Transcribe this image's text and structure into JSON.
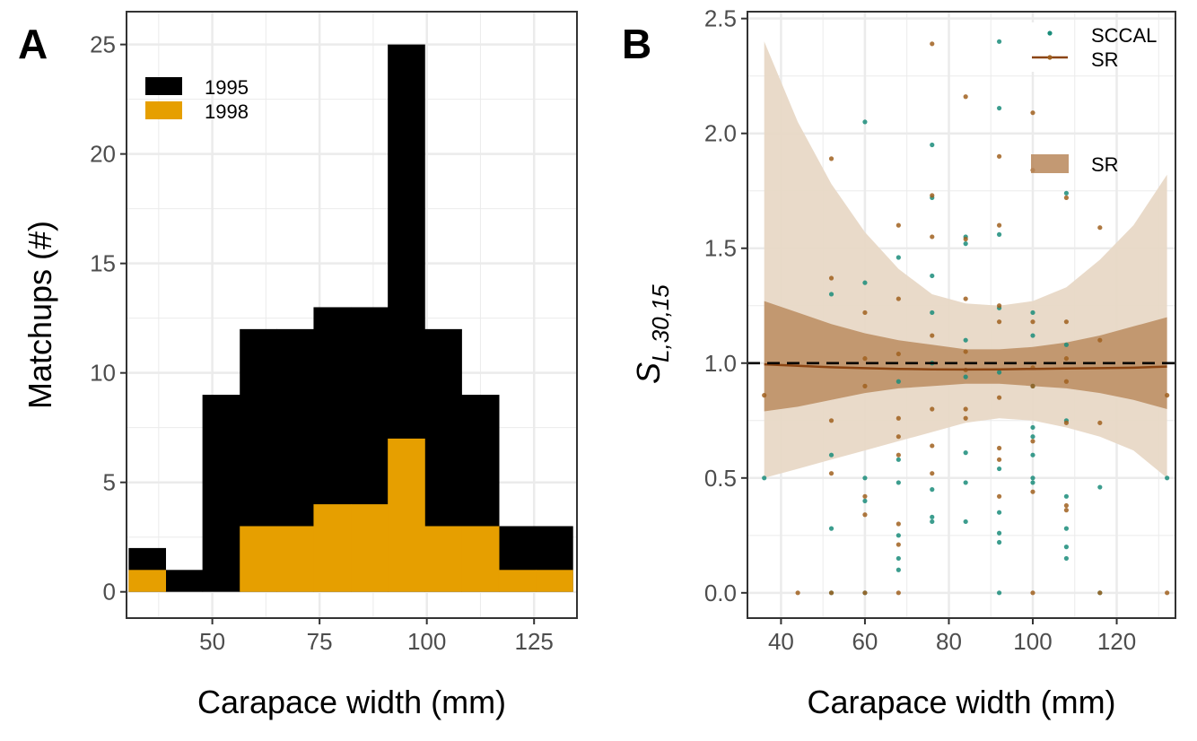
{
  "colors": {
    "bar_1995": "#000000",
    "bar_1998": "#E69F00",
    "sccal": "#1A8C7A",
    "sr_line": "#8B4513",
    "sr_points": "#A0601E",
    "sr_ribbon_inner": "#B8875A",
    "sr_ribbon_outer": "#E8D8C6",
    "grid": "#EBEBEB",
    "axis": "#333333"
  },
  "chart_data": [
    {
      "type": "bar",
      "panel_label": "A",
      "xlabel": "Carapace width (mm)",
      "ylabel": "Matchups (#)",
      "xlim": [
        30,
        135
      ],
      "ylim": [
        -1.2,
        26.5
      ],
      "x_ticks": [
        50,
        75,
        100,
        125
      ],
      "y_ticks": [
        0,
        5,
        10,
        15,
        20,
        25
      ],
      "bin_edges": [
        30.5,
        39.1,
        47.7,
        56.4,
        65.0,
        73.6,
        82.3,
        90.9,
        99.5,
        108.1,
        116.8,
        125.4,
        134.0
      ],
      "legend": {
        "position": "top-left",
        "entries": [
          "1995",
          "1998"
        ]
      },
      "series": [
        {
          "name": "1995",
          "values": [
            2,
            1,
            9,
            12,
            12,
            13,
            13,
            25,
            12,
            9,
            3,
            3
          ]
        },
        {
          "name": "1998",
          "values": [
            1,
            0,
            0,
            3,
            3,
            4,
            4,
            7,
            3,
            3,
            1,
            1
          ]
        }
      ]
    },
    {
      "type": "scatter",
      "panel_label": "B",
      "xlabel": "Carapace width (mm)",
      "ylabel_main": "S",
      "ylabel_sub": "L,30,15",
      "xlim": [
        32,
        134
      ],
      "ylim": [
        -0.11,
        2.53
      ],
      "x_ticks": [
        40,
        60,
        80,
        100,
        120
      ],
      "y_ticks": [
        "0.0",
        "0.5",
        "1.0",
        "1.5",
        "2.0",
        "2.5"
      ],
      "reference_line": 1.0,
      "legend": {
        "position": "top-right",
        "entries": [
          {
            "label": "SCCAL",
            "kind": "point"
          },
          {
            "label": "SR",
            "kind": "line"
          },
          {
            "label": "SR",
            "kind": "ribbon"
          }
        ]
      },
      "series": [
        {
          "name": "SCCAL",
          "points": [
            [
              36,
              0.5
            ],
            [
              52,
              0.28
            ],
            [
              52,
              0.6
            ],
            [
              52,
              1.3
            ],
            [
              52,
              0
            ],
            [
              60,
              0.5
            ],
            [
              60,
              1.35
            ],
            [
              60,
              2.05
            ],
            [
              60,
              0.4
            ],
            [
              60,
              0
            ],
            [
              68,
              0.1
            ],
            [
              68,
              0.15
            ],
            [
              68,
              0.25
            ],
            [
              68,
              0.48
            ],
            [
              68,
              1.46
            ],
            [
              68,
              0.92
            ],
            [
              68,
              0.58
            ],
            [
              76,
              0.31
            ],
            [
              76,
              0.33
            ],
            [
              76,
              0.45
            ],
            [
              76,
              1.38
            ],
            [
              76,
              1.95
            ],
            [
              76,
              1.72
            ],
            [
              76,
              1.22
            ],
            [
              76,
              1.0
            ],
            [
              84,
              0.31
            ],
            [
              84,
              0.48
            ],
            [
              84,
              0.61
            ],
            [
              84,
              0.94
            ],
            [
              84,
              1.1
            ],
            [
              84,
              1.55
            ],
            [
              84,
              1.52
            ],
            [
              92,
              0.22
            ],
            [
              92,
              0.26
            ],
            [
              92,
              0.35
            ],
            [
              92,
              0.54
            ],
            [
              92,
              1.24
            ],
            [
              92,
              1.56
            ],
            [
              92,
              2.11
            ],
            [
              92,
              2.4
            ],
            [
              92,
              0.96
            ],
            [
              92,
              0
            ],
            [
              100,
              0.48
            ],
            [
              100,
              0.5
            ],
            [
              100,
              0.6
            ],
            [
              100,
              0.68
            ],
            [
              100,
              0.72
            ],
            [
              100,
              1.12
            ],
            [
              100,
              1.22
            ],
            [
              100,
              0.9
            ],
            [
              108,
              0.15
            ],
            [
              108,
              0.2
            ],
            [
              108,
              0.28
            ],
            [
              108,
              0.42
            ],
            [
              108,
              0.75
            ],
            [
              108,
              1.08
            ],
            [
              108,
              1.74
            ],
            [
              108,
              2.4
            ],
            [
              116,
              0.46
            ],
            [
              116,
              0
            ],
            [
              132,
              0.5
            ]
          ]
        },
        {
          "name": "SR",
          "points": [
            [
              36,
              0.86
            ],
            [
              44,
              0
            ],
            [
              52,
              0.52
            ],
            [
              52,
              0.75
            ],
            [
              52,
              1.37
            ],
            [
              52,
              1.89
            ],
            [
              52,
              0
            ],
            [
              60,
              0.34
            ],
            [
              60,
              0.42
            ],
            [
              60,
              0.9
            ],
            [
              60,
              1.22
            ],
            [
              60,
              1.02
            ],
            [
              60,
              0
            ],
            [
              68,
              0.21
            ],
            [
              68,
              0.3
            ],
            [
              68,
              0.6
            ],
            [
              68,
              0.68
            ],
            [
              68,
              0.76
            ],
            [
              68,
              1.04
            ],
            [
              68,
              1.28
            ],
            [
              68,
              1.6
            ],
            [
              68,
              0
            ],
            [
              76,
              0.52
            ],
            [
              76,
              0.64
            ],
            [
              76,
              0.8
            ],
            [
              76,
              1.55
            ],
            [
              76,
              1.73
            ],
            [
              76,
              2.39
            ],
            [
              76,
              1.12
            ],
            [
              84,
              0.8
            ],
            [
              84,
              0.76
            ],
            [
              84,
              1.05
            ],
            [
              84,
              1.28
            ],
            [
              84,
              1.54
            ],
            [
              84,
              2.16
            ],
            [
              84,
              0.97
            ],
            [
              92,
              0.42
            ],
            [
              92,
              0.58
            ],
            [
              92,
              0.85
            ],
            [
              92,
              1.18
            ],
            [
              92,
              1.25
            ],
            [
              92,
              1.6
            ],
            [
              92,
              1.9
            ],
            [
              92,
              0.63
            ],
            [
              100,
              0.44
            ],
            [
              100,
              0.66
            ],
            [
              100,
              0.98
            ],
            [
              100,
              1.18
            ],
            [
              100,
              1.84
            ],
            [
              100,
              2.09
            ],
            [
              100,
              0.9
            ],
            [
              100,
              0
            ],
            [
              108,
              0.36
            ],
            [
              108,
              0.38
            ],
            [
              108,
              0.92
            ],
            [
              108,
              1.02
            ],
            [
              108,
              1.18
            ],
            [
              108,
              1.72
            ],
            [
              108,
              0.74
            ],
            [
              116,
              0.74
            ],
            [
              116,
              1.1
            ],
            [
              116,
              1.59
            ],
            [
              116,
              0
            ],
            [
              132,
              0.86
            ],
            [
              132,
              0
            ]
          ]
        }
      ],
      "sr_line": {
        "x": [
          36,
          44,
          52,
          60,
          68,
          76,
          84,
          92,
          100,
          108,
          116,
          124,
          132
        ],
        "y": [
          0.995,
          0.988,
          0.982,
          0.978,
          0.975,
          0.973,
          0.972,
          0.973,
          0.975,
          0.977,
          0.978,
          0.98,
          0.985
        ]
      },
      "sr_ribbon_inner": {
        "x": [
          36,
          44,
          52,
          60,
          68,
          76,
          84,
          92,
          100,
          108,
          116,
          124,
          132
        ],
        "lower": [
          0.79,
          0.81,
          0.84,
          0.87,
          0.89,
          0.9,
          0.91,
          0.91,
          0.9,
          0.89,
          0.87,
          0.84,
          0.8
        ],
        "upper": [
          1.27,
          1.22,
          1.17,
          1.13,
          1.1,
          1.08,
          1.06,
          1.06,
          1.07,
          1.09,
          1.12,
          1.16,
          1.2
        ]
      },
      "sr_ribbon_outer": {
        "x": [
          36,
          44,
          52,
          60,
          68,
          76,
          84,
          92,
          100,
          108,
          116,
          124,
          132
        ],
        "lower": [
          0.5,
          0.54,
          0.58,
          0.62,
          0.66,
          0.7,
          0.74,
          0.76,
          0.75,
          0.72,
          0.68,
          0.62,
          0.5
        ],
        "upper": [
          2.4,
          2.05,
          1.78,
          1.57,
          1.41,
          1.3,
          1.26,
          1.25,
          1.27,
          1.33,
          1.45,
          1.6,
          1.82
        ]
      }
    }
  ]
}
